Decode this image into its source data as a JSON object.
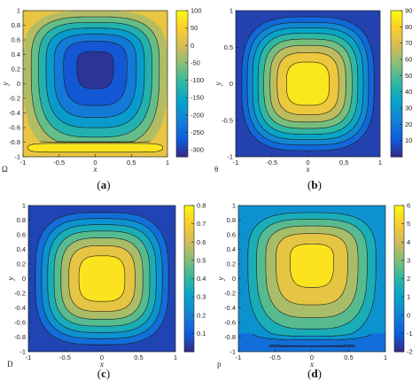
{
  "chart_data": [
    {
      "id": "a",
      "type": "heatmap",
      "panel_label": "(a)",
      "panel_letter": "a",
      "xlabel": "x",
      "ylabel": "y",
      "variable": "Ω",
      "xlim": [
        -1,
        1
      ],
      "ylim": [
        -1,
        1
      ],
      "xticks": [
        -1,
        -0.5,
        0,
        0.5,
        1
      ],
      "yticks": [
        -1,
        -0.8,
        -0.6,
        -0.4,
        -0.2,
        0,
        0.2,
        0.4,
        0.6,
        0.8,
        1
      ],
      "xtick_labels": [
        "-1",
        "-0.5",
        "0",
        "0.5",
        "1"
      ],
      "ytick_labels": [
        "-1",
        "-0.8",
        "-0.6",
        "-0.4",
        "-0.2",
        "0",
        "0.2",
        "0.4",
        "0.6",
        "0.8",
        "1"
      ],
      "field": {
        "kind": "vortex",
        "center": [
          0,
          0.25
        ],
        "center_value": -320,
        "edge_value": 0,
        "bottom_band_y": -0.8,
        "bottom_value": 95
      },
      "colorbar": {
        "min": -320,
        "max": 100,
        "ticks": [
          100,
          50,
          0,
          -50,
          -100,
          -150,
          -200,
          -250,
          -300
        ],
        "tick_labels": [
          "100",
          "50",
          "0",
          "-50",
          "-100",
          "-150",
          "-200",
          "-250",
          "-300"
        ]
      },
      "contour_levels": [
        -300,
        -250,
        -200,
        -150,
        -100,
        -50,
        0,
        50
      ]
    },
    {
      "id": "b",
      "type": "heatmap",
      "panel_label": "(b)",
      "panel_letter": "b",
      "xlabel": "x",
      "ylabel": "y",
      "variable": "θ",
      "xlim": [
        -1,
        1
      ],
      "ylim": [
        -1,
        1
      ],
      "xticks": [
        -1,
        -0.5,
        0,
        0.5,
        1
      ],
      "yticks": [
        -1,
        -0.5,
        0,
        0.5,
        1
      ],
      "xtick_labels": [
        "-1",
        "-0.5",
        "0",
        "0.5",
        "1"
      ],
      "ytick_labels": [
        "-1",
        "-0.5",
        "0",
        "0.5",
        "1"
      ],
      "field": {
        "kind": "bump",
        "center": [
          0,
          0
        ],
        "peak": 88,
        "edge_value": 0
      },
      "colorbar": {
        "min": 0,
        "max": 90,
        "ticks": [
          90,
          80,
          70,
          60,
          50,
          40,
          30,
          20,
          10
        ],
        "tick_labels": [
          "90",
          "80",
          "70",
          "60",
          "50",
          "40",
          "30",
          "20",
          "10"
        ]
      },
      "contour_levels": [
        10,
        20,
        30,
        40,
        50,
        60,
        70,
        80
      ]
    },
    {
      "id": "c",
      "type": "heatmap",
      "panel_label": "(c)",
      "panel_letter": "c",
      "xlabel": "x",
      "ylabel": "y",
      "variable": "D",
      "xlim": [
        -1,
        1
      ],
      "ylim": [
        -1,
        1
      ],
      "xticks": [
        -1,
        -0.5,
        0,
        0.5,
        1
      ],
      "yticks": [
        -1,
        -0.8,
        -0.6,
        -0.4,
        -0.2,
        0,
        0.2,
        0.4,
        0.6,
        0.8,
        1
      ],
      "xtick_labels": [
        "-1",
        "-0.5",
        "0",
        "0.5",
        "1"
      ],
      "ytick_labels": [
        "-1",
        "-0.8",
        "-0.6",
        "-0.4",
        "-0.2",
        "0",
        "0.2",
        "0.4",
        "0.6",
        "0.8",
        "1"
      ],
      "field": {
        "kind": "bump",
        "center": [
          0,
          0
        ],
        "peak": 0.78,
        "edge_value": 0
      },
      "colorbar": {
        "min": 0,
        "max": 0.8,
        "ticks": [
          0.8,
          0.7,
          0.6,
          0.5,
          0.4,
          0.3,
          0.2,
          0.1
        ],
        "tick_labels": [
          "0.8",
          "0.7",
          "0.6",
          "0.5",
          "0.4",
          "0.3",
          "0.2",
          "0.1"
        ]
      },
      "contour_levels": [
        0.1,
        0.2,
        0.3,
        0.4,
        0.5,
        0.6,
        0.7
      ]
    },
    {
      "id": "d",
      "type": "heatmap",
      "panel_label": "(d)",
      "panel_letter": "d",
      "xlabel": "x",
      "ylabel": "y",
      "variable": "p",
      "xlim": [
        -1,
        1
      ],
      "ylim": [
        -1,
        1
      ],
      "xticks": [
        -1,
        -0.5,
        0,
        0.5,
        1
      ],
      "yticks": [
        -1,
        -0.8,
        -0.6,
        -0.4,
        -0.2,
        0,
        0.2,
        0.4,
        0.6,
        0.8,
        1
      ],
      "xtick_labels": [
        "-1",
        "-0.5",
        "0",
        "0.5",
        "1"
      ],
      "ytick_labels": [
        "-1",
        "-0.8",
        "-0.6",
        "-0.4",
        "-0.2",
        "0",
        "0.2",
        "0.4",
        "0.6",
        "0.8",
        "1"
      ],
      "field": {
        "kind": "pressure",
        "center": [
          0,
          0.25
        ],
        "peak": 5.5,
        "edge_value": 0,
        "bottom_value": -2
      },
      "colorbar": {
        "min": -2,
        "max": 6,
        "ticks": [
          6,
          5,
          4,
          3,
          2,
          1,
          0,
          -1,
          -2
        ],
        "tick_labels": [
          "6",
          "5",
          "4",
          "3",
          "2",
          "1",
          "0",
          "-1",
          "-2"
        ]
      },
      "contour_levels": [
        -1,
        0,
        1,
        2,
        3,
        4,
        5
      ]
    }
  ]
}
